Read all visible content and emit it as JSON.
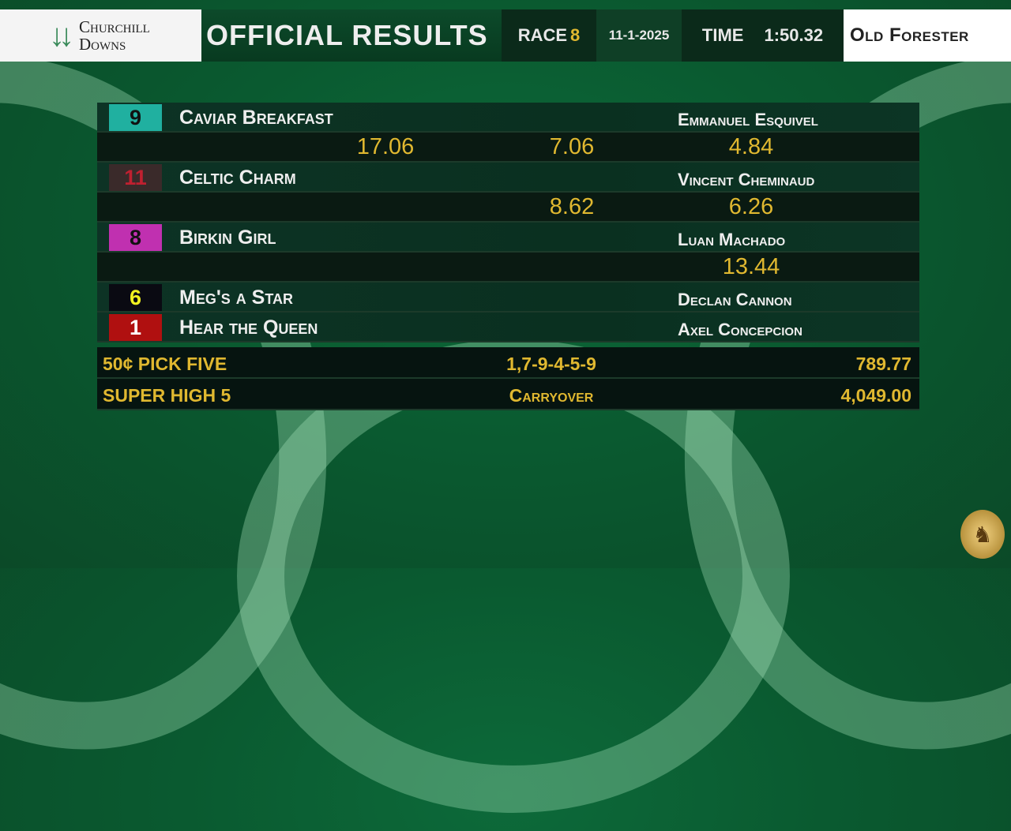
{
  "header": {
    "logo": "Churchill Downs",
    "logo_line1": "Churchill",
    "logo_line2": "Downs",
    "title": "OFFICIAL RESULTS",
    "race_label": "RACE",
    "race_number": "8",
    "date": "11-1-2025",
    "time_label": "TIME",
    "time": "1:50.32",
    "sponsor": "Old Forester"
  },
  "finishers": [
    {
      "number": "9",
      "name": "Caviar Breakfast",
      "jockey": "Emmanuel Esquivel",
      "win": "17.06",
      "place": "7.06",
      "show": "4.84",
      "badge_bg": "#20b0a0",
      "badge_fg": "#111111"
    },
    {
      "number": "11",
      "name": "Celtic Charm",
      "jockey": "Vincent Cheminaud",
      "place": "8.62",
      "show": "6.26",
      "badge_bg": "#3a2a2a",
      "badge_fg": "#c02030"
    },
    {
      "number": "8",
      "name": "Birkin Girl",
      "jockey": "Luan Machado",
      "show": "13.44",
      "badge_bg": "#c030b0",
      "badge_fg": "#111111"
    },
    {
      "number": "6",
      "name": "Meg's a Star",
      "jockey": "Declan Cannon",
      "badge_bg": "#0a0a12",
      "badge_fg": "#f0f020"
    },
    {
      "number": "1",
      "name": "Hear the Queen",
      "jockey": "Axel Concepcion",
      "badge_bg": "#b01010",
      "badge_fg": "#ffffff"
    }
  ],
  "exotics": [
    {
      "wager": "50¢ PICK FIVE",
      "combination": "1,7-9-4-5-9",
      "payout": "789.77"
    },
    {
      "wager": "SUPER HIGH 5",
      "combination": "Carryover",
      "payout": "4,049.00"
    }
  ],
  "colors": {
    "gold": "#e0b830",
    "panel": "#0a3020"
  },
  "icons": {
    "crest": "horse-crown-crest-icon"
  }
}
